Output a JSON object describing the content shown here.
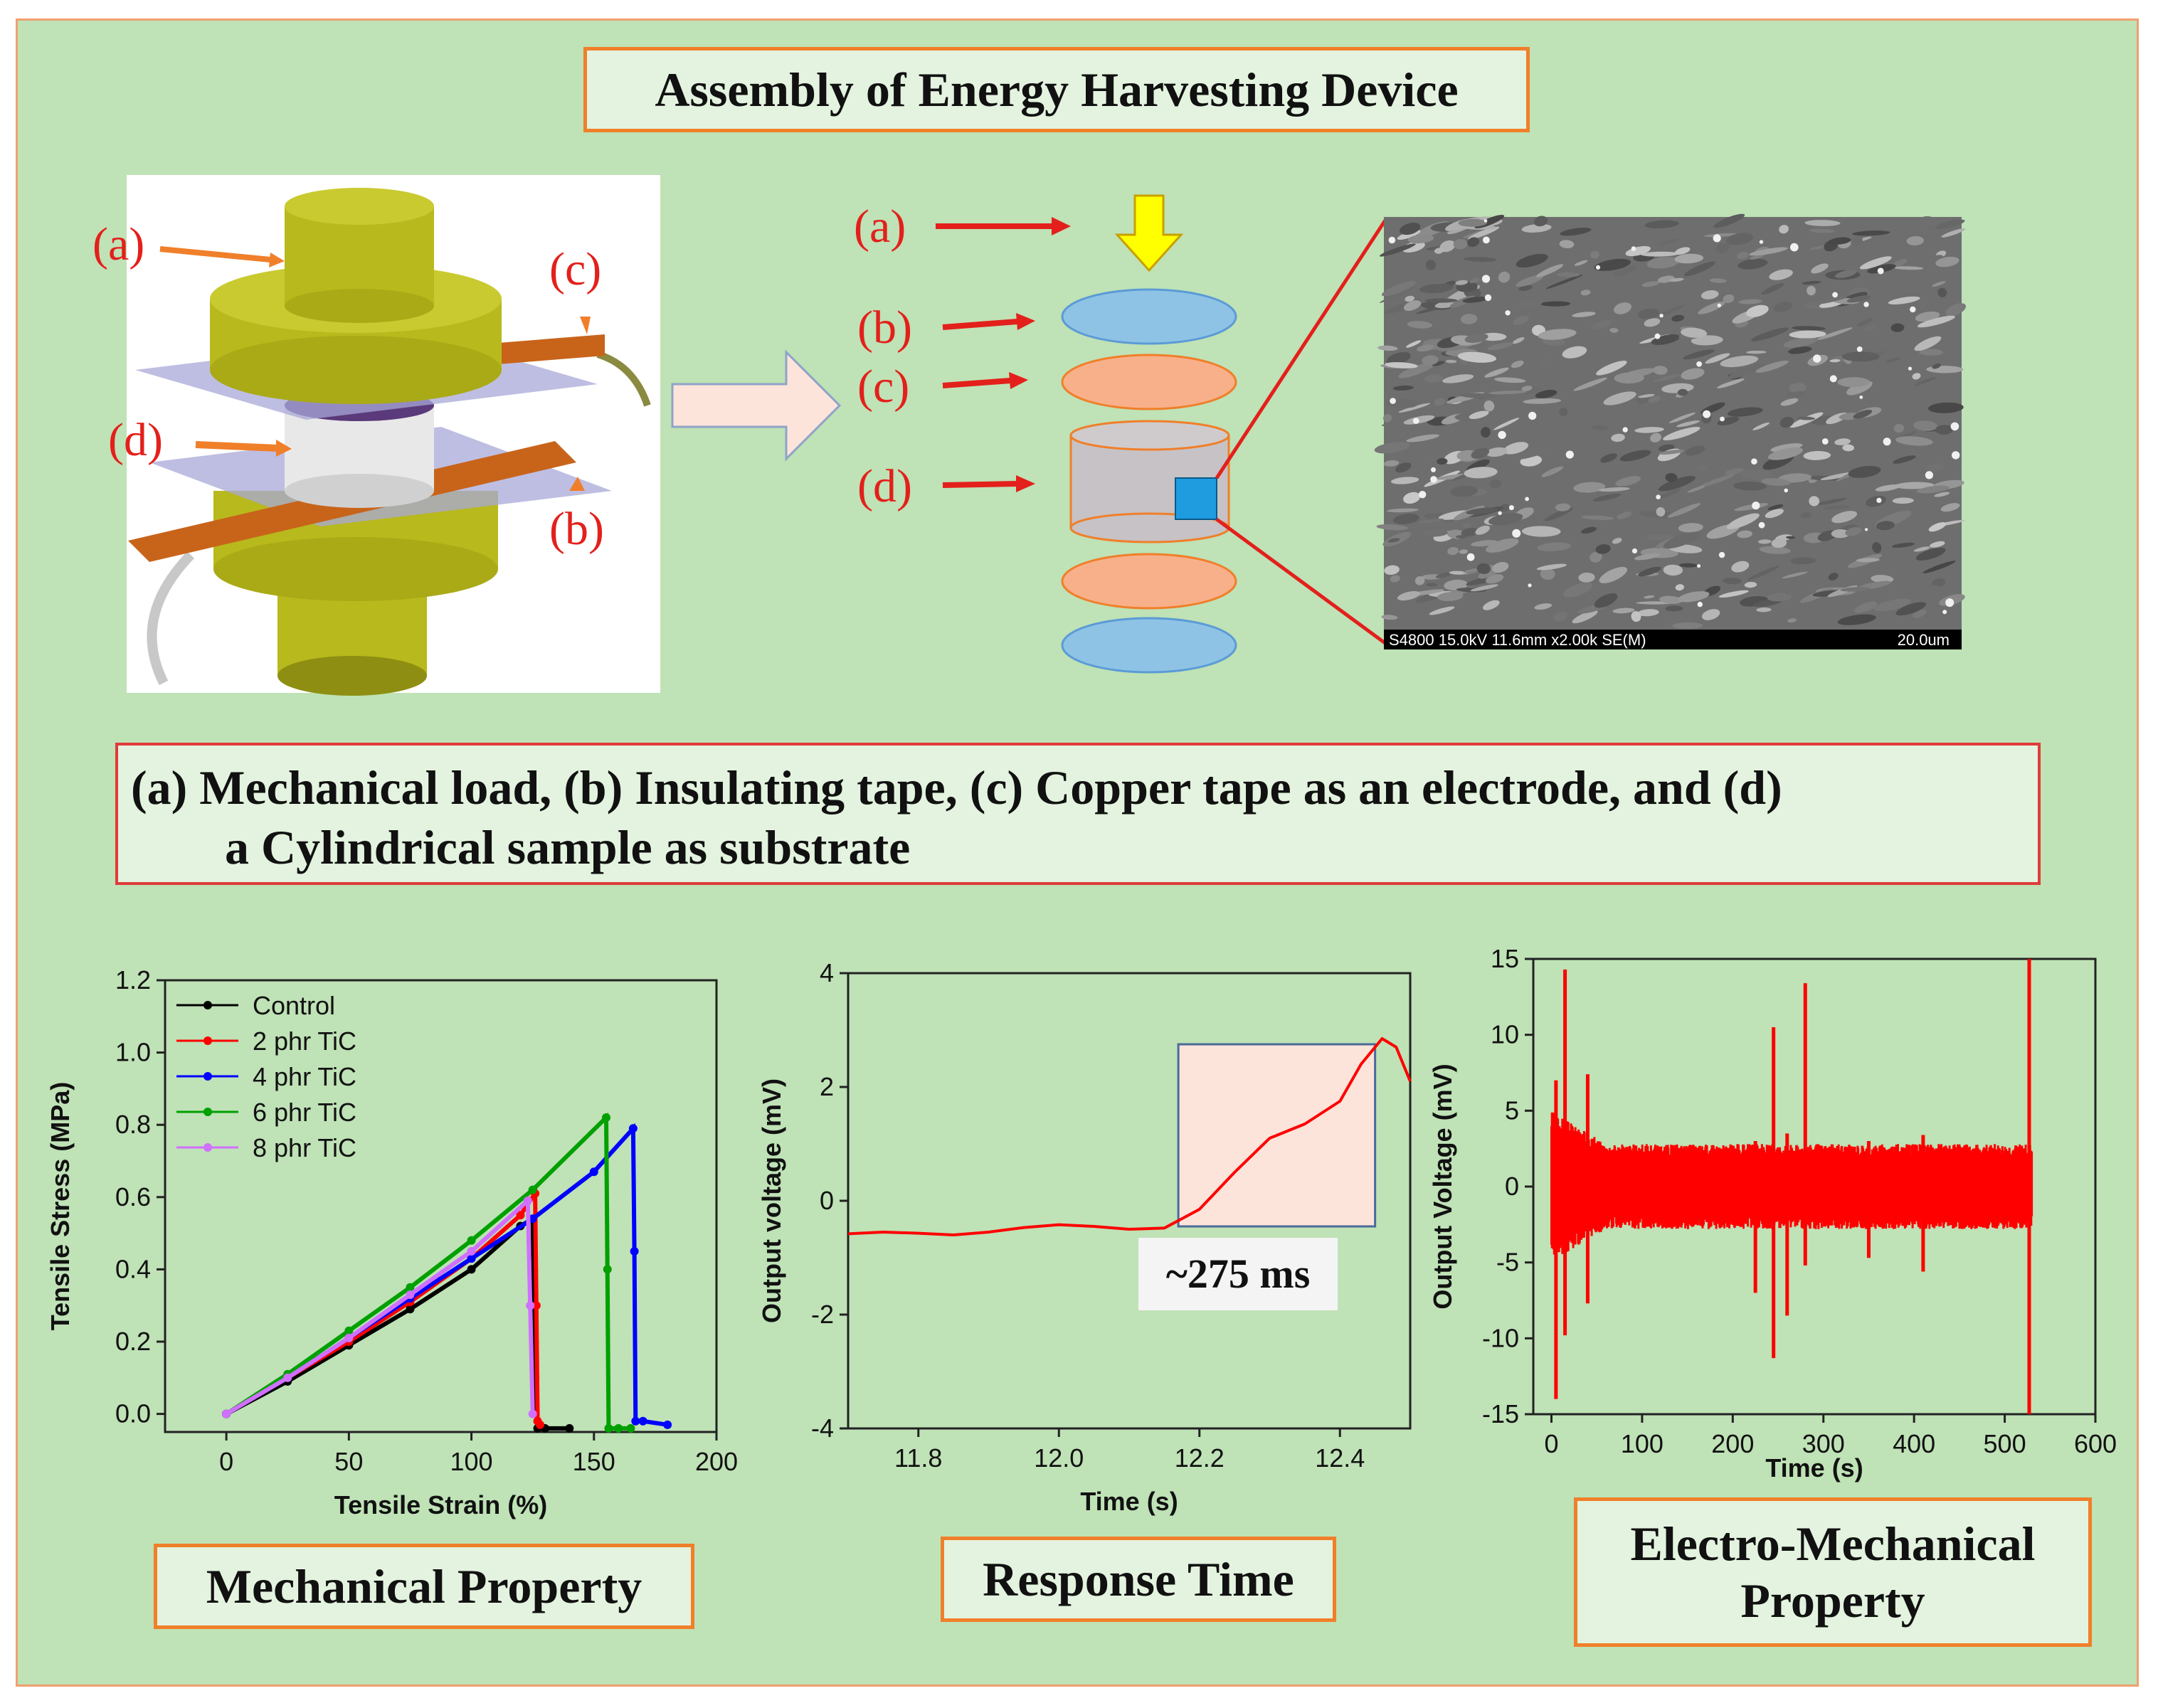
{
  "title": "Assembly of Energy Harvesting Device",
  "caption": {
    "line1": "(a)  Mechanical load, (b) Insulating tape, (c) Copper tape as an electrode, and (d)",
    "line2": "a Cylindrical sample as substrate"
  },
  "part_labels": {
    "a": "(a)",
    "b": "(b)",
    "c": "(c)",
    "d": "(d)"
  },
  "sem_info": {
    "left": "S4800 15.0kV 11.6mm x2.00k SE(M)",
    "right": "20.0um"
  },
  "section_labels": {
    "mechanical": "Mechanical Property",
    "response": "Response Time",
    "electro_line1": "Electro-Mechanical",
    "electro_line2": "Property"
  },
  "response_annotation": "~275 ms",
  "colors": {
    "background": "#bfe2b6",
    "box_border": "#f07f2a",
    "label_red": "#e3201b",
    "disk_blue": "#8fc3e6",
    "disk_orange": "#f7b08a",
    "cylinder_gray": "#c6c2c5",
    "mustard": "#b8b91c",
    "signal_red": "#ff0000"
  },
  "chart_data": [
    {
      "type": "line",
      "xlabel": "Tensile Strain (%)",
      "ylabel": "Tensile Stress (MPa)",
      "xlim": [
        -25,
        200
      ],
      "ylim": [
        -0.05,
        1.2
      ],
      "xticks": [
        "0",
        "50",
        "100",
        "150",
        "200"
      ],
      "yticks": [
        "0.0",
        "0.2",
        "0.4",
        "0.6",
        "0.8",
        "1.0",
        "1.2"
      ],
      "legend_position": "top-left",
      "series": [
        {
          "name": "Control",
          "color": "#000000",
          "marker": "square",
          "x": [
            0,
            25,
            50,
            75,
            100,
            120,
            125,
            126,
            127,
            130,
            140
          ],
          "y": [
            0,
            0.09,
            0.19,
            0.29,
            0.4,
            0.52,
            0.54,
            0.1,
            -0.04,
            -0.04,
            -0.04
          ]
        },
        {
          "name": "2 phr TiC",
          "color": "#ff0000",
          "marker": "circle",
          "x": [
            0,
            25,
            50,
            75,
            100,
            120,
            126,
            126.5,
            127,
            128
          ],
          "y": [
            0,
            0.1,
            0.2,
            0.31,
            0.43,
            0.55,
            0.61,
            0.3,
            -0.02,
            -0.03
          ]
        },
        {
          "name": "4 phr TiC",
          "color": "#0000ff",
          "marker": "triangle-up",
          "x": [
            0,
            25,
            50,
            75,
            100,
            125,
            150,
            166,
            166.5,
            167,
            170,
            180
          ],
          "y": [
            0,
            0.1,
            0.21,
            0.32,
            0.43,
            0.54,
            0.67,
            0.79,
            0.45,
            -0.02,
            -0.02,
            -0.03
          ]
        },
        {
          "name": "6 phr TiC",
          "color": "#00a000",
          "marker": "triangle-down",
          "x": [
            0,
            25,
            50,
            75,
            100,
            125,
            155,
            155.5,
            156,
            160,
            165
          ],
          "y": [
            0,
            0.11,
            0.23,
            0.35,
            0.48,
            0.62,
            0.82,
            0.4,
            -0.04,
            -0.04,
            -0.04
          ]
        },
        {
          "name": "8 phr TiC",
          "color": "#d070ff",
          "marker": "diamond",
          "x": [
            0,
            25,
            50,
            75,
            100,
            123,
            124,
            125
          ],
          "y": [
            0,
            0.1,
            0.21,
            0.33,
            0.45,
            0.59,
            0.3,
            0.0
          ]
        }
      ]
    },
    {
      "type": "line",
      "xlabel": "Time (s)",
      "ylabel": "Output voltage (mV)",
      "xlim": [
        11.7,
        12.5
      ],
      "ylim": [
        -4,
        4
      ],
      "xticks": [
        "11.8",
        "12.0",
        "12.2",
        "12.4"
      ],
      "yticks": [
        "-4",
        "-2",
        "0",
        "2",
        "4"
      ],
      "series": [
        {
          "color": "#ff0000",
          "x": [
            11.7,
            11.75,
            11.8,
            11.85,
            11.9,
            11.95,
            12.0,
            12.05,
            12.1,
            12.15,
            12.2,
            12.25,
            12.3,
            12.35,
            12.4,
            12.43,
            12.46,
            12.48,
            12.5
          ],
          "y": [
            -0.58,
            -0.55,
            -0.57,
            -0.6,
            -0.55,
            -0.47,
            -0.42,
            -0.45,
            -0.5,
            -0.48,
            -0.15,
            0.5,
            1.1,
            1.35,
            1.75,
            2.4,
            2.85,
            2.7,
            2.1
          ]
        }
      ],
      "highlight_region": {
        "x": [
          12.17,
          12.45
        ],
        "y": [
          -0.45,
          2.75
        ]
      }
    },
    {
      "type": "line",
      "xlabel": "Time (s)",
      "ylabel": "Output Voltage (mV)",
      "xlim": [
        -20,
        600
      ],
      "ylim": [
        -15,
        15
      ],
      "xticks": [
        "0",
        "100",
        "200",
        "300",
        "400",
        "500",
        "600"
      ],
      "yticks": [
        "-15",
        "-10",
        "-5",
        "0",
        "5",
        "10",
        "15"
      ],
      "series": [
        {
          "color": "#ff0000",
          "x_range": [
            0,
            530
          ],
          "peaks": [
            {
              "x": 5,
              "max": 7,
              "min": -14
            },
            {
              "x": 15,
              "max": 14.3,
              "min": -9.8
            },
            {
              "x": 40,
              "max": 7.4,
              "min": -7.7
            },
            {
              "x": 225,
              "max": 3.0,
              "min": -7.0
            },
            {
              "x": 245,
              "max": 10.5,
              "min": -11.3
            },
            {
              "x": 260,
              "max": 3.5,
              "min": -8.5
            },
            {
              "x": 280,
              "max": 13.4,
              "min": -5.2
            },
            {
              "x": 350,
              "max": 3.0,
              "min": -4.7
            },
            {
              "x": 410,
              "max": 3.4,
              "min": -5.6
            },
            {
              "x": 527,
              "max": 15,
              "min": -15
            }
          ],
          "envelope_decay": {
            "start_amplitude": 5,
            "steady_max": 2.8,
            "steady_min": -2.8
          }
        }
      ]
    }
  ]
}
